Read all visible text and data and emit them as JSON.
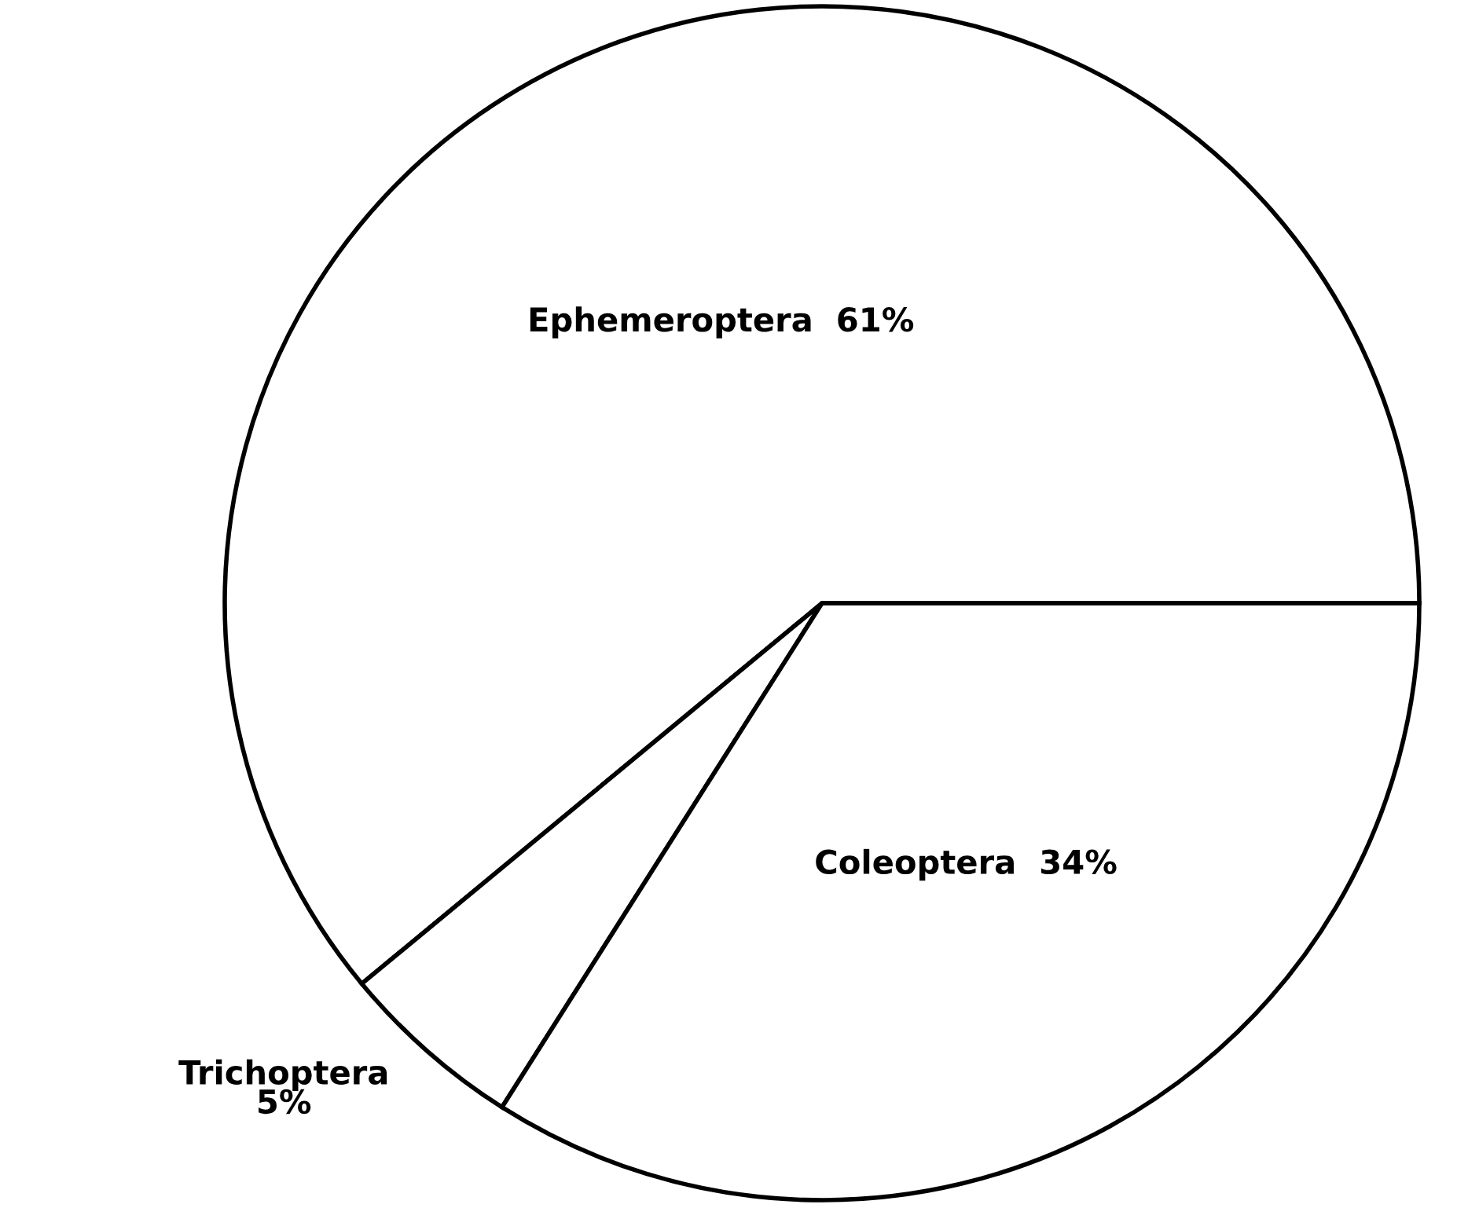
{
  "chart_data": {
    "type": "pie",
    "categories": [
      "Ephemeroptera",
      "Trichoptera",
      "Coleoptera"
    ],
    "values": [
      61,
      5,
      34
    ],
    "value_labels": [
      "61%",
      "5%",
      "34%"
    ],
    "colors": [
      "#ffffff",
      "#ffffff",
      "#ffffff"
    ]
  }
}
